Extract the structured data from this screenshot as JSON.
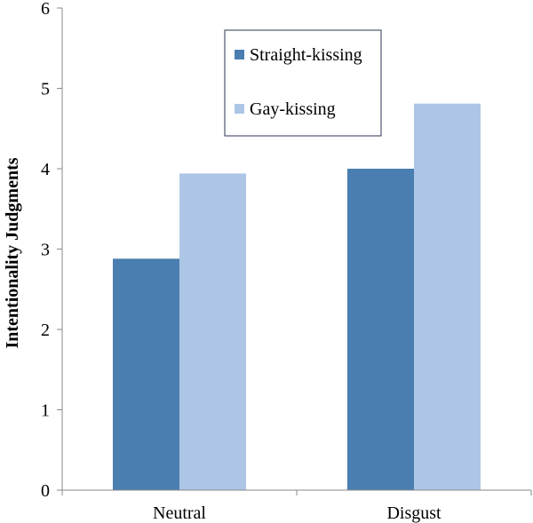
{
  "chart_data": {
    "type": "bar",
    "title": "",
    "xlabel": "",
    "ylabel": "Intentionality Judgments",
    "categories": [
      "Neutral",
      "Disgust"
    ],
    "series": [
      {
        "name": "Straight-kissing",
        "values": [
          2.88,
          4.0
        ],
        "color": "#4a7eb0"
      },
      {
        "name": "Gay-kissing",
        "values": [
          3.94,
          4.81
        ],
        "color": "#adc6e6"
      }
    ],
    "ylim": [
      0,
      6
    ],
    "yticks": [
      0,
      1,
      2,
      3,
      4,
      5,
      6
    ],
    "grid": false,
    "legend_position": "top-center"
  }
}
